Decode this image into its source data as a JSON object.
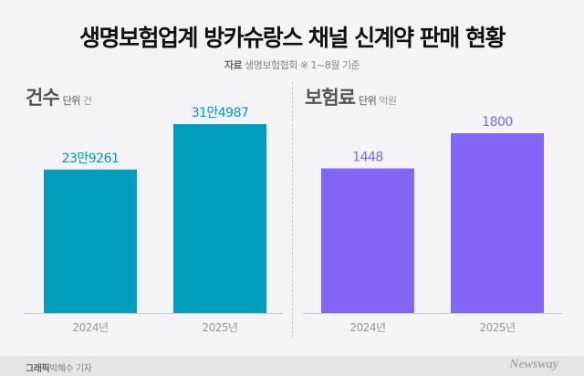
{
  "title": "생명보험업계 방카슈랑스 채널 신계약 판매 현황",
  "source": {
    "label": "자료",
    "text": "생명보험협회 ※ 1~8월 기준"
  },
  "chart_data": [
    {
      "type": "bar",
      "title": "건수",
      "unit_label": "단위",
      "unit": "건",
      "categories": [
        "2024년",
        "2025년"
      ],
      "values": [
        239261,
        314987
      ],
      "data_labels": [
        "23만9261",
        "31만4987"
      ],
      "color": "#009dbd",
      "grid": false
    },
    {
      "type": "bar",
      "title": "보험료",
      "unit_label": "단위",
      "unit": "억원",
      "categories": [
        "2024년",
        "2025년"
      ],
      "values": [
        1448,
        1800
      ],
      "data_labels": [
        "1448",
        "1800"
      ],
      "color": "#8366f5",
      "grid": false
    }
  ],
  "footer": {
    "credit_label": "그래픽",
    "credit": "박혜수 기자",
    "logo": "Newsway"
  }
}
